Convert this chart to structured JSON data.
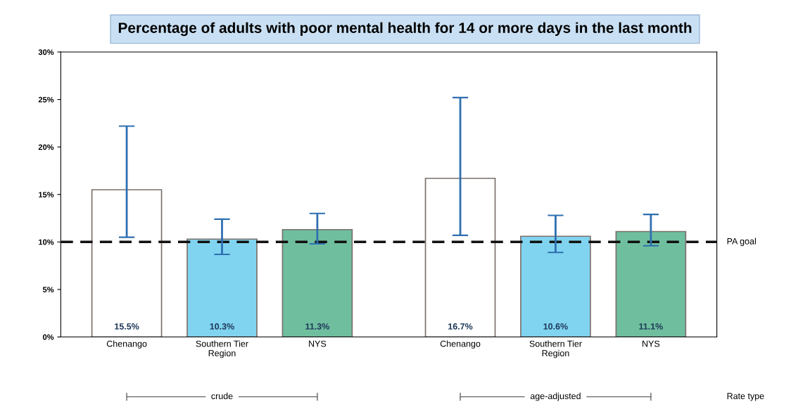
{
  "chart_data": {
    "type": "bar",
    "title": "Percentage of adults with poor mental health for 14 or more days in the last month",
    "categories": [
      "Chenango",
      "Southern Tier\nRegion",
      "NYS",
      "Chenango",
      "Southern Tier\nRegion",
      "NYS"
    ],
    "values": [
      15.5,
      10.3,
      11.3,
      16.7,
      10.6,
      11.1
    ],
    "colors": [
      "#ffffff",
      "#80d4f0",
      "#6fbf9f",
      "#ffffff",
      "#80d4f0",
      "#6fbf9f"
    ],
    "errors": [
      [
        10.5,
        22.2
      ],
      [
        8.7,
        12.4
      ],
      [
        9.8,
        13.0
      ],
      [
        10.7,
        25.2
      ],
      [
        8.9,
        12.8
      ],
      [
        9.6,
        12.9
      ]
    ],
    "value_labels": [
      "15.5%",
      "10.3%",
      "11.3%",
      "16.7%",
      "10.6%",
      "11.1%"
    ],
    "ylim": [
      0,
      30
    ],
    "yticks": [
      {
        "value": 0,
        "label": "0%"
      },
      {
        "value": 5,
        "label": "5%"
      },
      {
        "value": 10,
        "label": "10%"
      },
      {
        "value": 15,
        "label": "15%"
      },
      {
        "value": 20,
        "label": "20%"
      },
      {
        "value": 25,
        "label": "25%"
      },
      {
        "value": 30,
        "label": "30%"
      }
    ],
    "ref_lines": [
      {
        "axis": "y",
        "value": 10,
        "label": "PA goal",
        "color": "#111111",
        "line_style": "dashed"
      }
    ],
    "annotations": [
      "crude",
      "age-adjusted",
      "Rate type"
    ],
    "grid": false,
    "legend": false
  }
}
